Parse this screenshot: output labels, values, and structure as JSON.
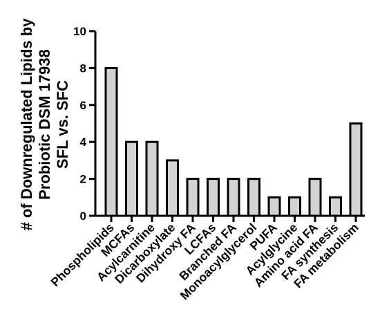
{
  "chart_data": {
    "type": "bar",
    "ylabel_lines": [
      "# of Downregulated Lipids by",
      "Probiotic DSM 17938",
      "SFL vs. SFC"
    ],
    "xlabel": "",
    "ylim": [
      0,
      10
    ],
    "yticks": [
      0,
      2,
      4,
      6,
      8,
      10
    ],
    "categories": [
      "Phospholipids",
      "MCFAs",
      "Acylcarnitine",
      "Dicarboxylate",
      "Dihydroxy FA",
      "LCFAs",
      "Branched FA",
      "Monoacylglycerol",
      "PUFA",
      "Acylglycine",
      "Amino acid FA",
      "FA synthesis",
      "FA metabolism"
    ],
    "values": [
      8,
      4,
      4,
      3,
      2,
      2,
      2,
      2,
      1,
      1,
      2,
      1,
      5
    ],
    "bar_color": "#d3d3d3",
    "edge_color": "#000000",
    "grid": false,
    "legend": "none"
  }
}
